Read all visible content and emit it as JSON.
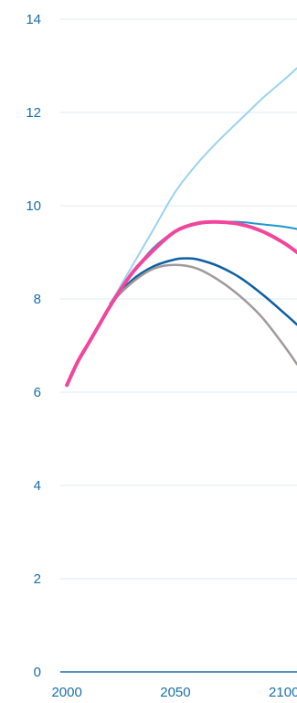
{
  "chart_data": {
    "type": "line",
    "title": "",
    "xlabel": "",
    "ylabel": "",
    "xlim": [
      1997,
      2106
    ],
    "ylim": [
      0,
      14
    ],
    "y_ticks": [
      0,
      2,
      4,
      6,
      8,
      10,
      12,
      14
    ],
    "y_tick_labels": [
      "0",
      "2",
      "4",
      "6",
      "8",
      "10",
      "12",
      "14"
    ],
    "x_ticks": [
      2000,
      2050,
      2100
    ],
    "x_tick_labels": [
      "2000",
      "2050",
      "2100"
    ],
    "grid": true,
    "legend": "none",
    "colors": {
      "grid": "#dbeaf5",
      "axis": "#1a6fa8",
      "tick_text": "#1a6fa8"
    },
    "series": [
      {
        "color": "#9ad3ef",
        "line_width": 2,
        "x": [
          2020,
          2030,
          2040,
          2050,
          2060,
          2070,
          2080,
          2090,
          2100,
          2106
        ],
        "y": [
          7.9,
          8.7,
          9.5,
          10.3,
          10.9,
          11.4,
          11.85,
          12.3,
          12.7,
          12.95
        ]
      },
      {
        "color": "#1e96cf",
        "line_width": 2,
        "x": [
          2020,
          2030,
          2040,
          2050,
          2060,
          2070,
          2080,
          2090,
          2100,
          2106
        ],
        "y": [
          7.9,
          8.55,
          9.1,
          9.45,
          9.6,
          9.65,
          9.65,
          9.6,
          9.55,
          9.5
        ]
      },
      {
        "color": "#0d5fa3",
        "line_width": 2.5,
        "x": [
          2020,
          2030,
          2040,
          2050,
          2055,
          2060,
          2070,
          2080,
          2090,
          2100,
          2106
        ],
        "y": [
          7.9,
          8.4,
          8.7,
          8.85,
          8.87,
          8.85,
          8.7,
          8.45,
          8.1,
          7.7,
          7.45
        ]
      },
      {
        "color": "#a09a9a",
        "line_width": 2.5,
        "x": [
          2020,
          2030,
          2040,
          2050,
          2060,
          2070,
          2080,
          2090,
          2100,
          2106
        ],
        "y": [
          7.9,
          8.35,
          8.65,
          8.73,
          8.65,
          8.4,
          8.05,
          7.6,
          7.0,
          6.6
        ]
      },
      {
        "color": "#f0469c",
        "line_width": 4,
        "x": [
          2000,
          2005,
          2010,
          2015,
          2020,
          2030,
          2040,
          2050,
          2060,
          2070,
          2080,
          2090,
          2100,
          2106
        ],
        "y": [
          6.15,
          6.65,
          7.05,
          7.45,
          7.85,
          8.55,
          9.05,
          9.45,
          9.62,
          9.65,
          9.6,
          9.45,
          9.2,
          9.0
        ]
      }
    ]
  }
}
